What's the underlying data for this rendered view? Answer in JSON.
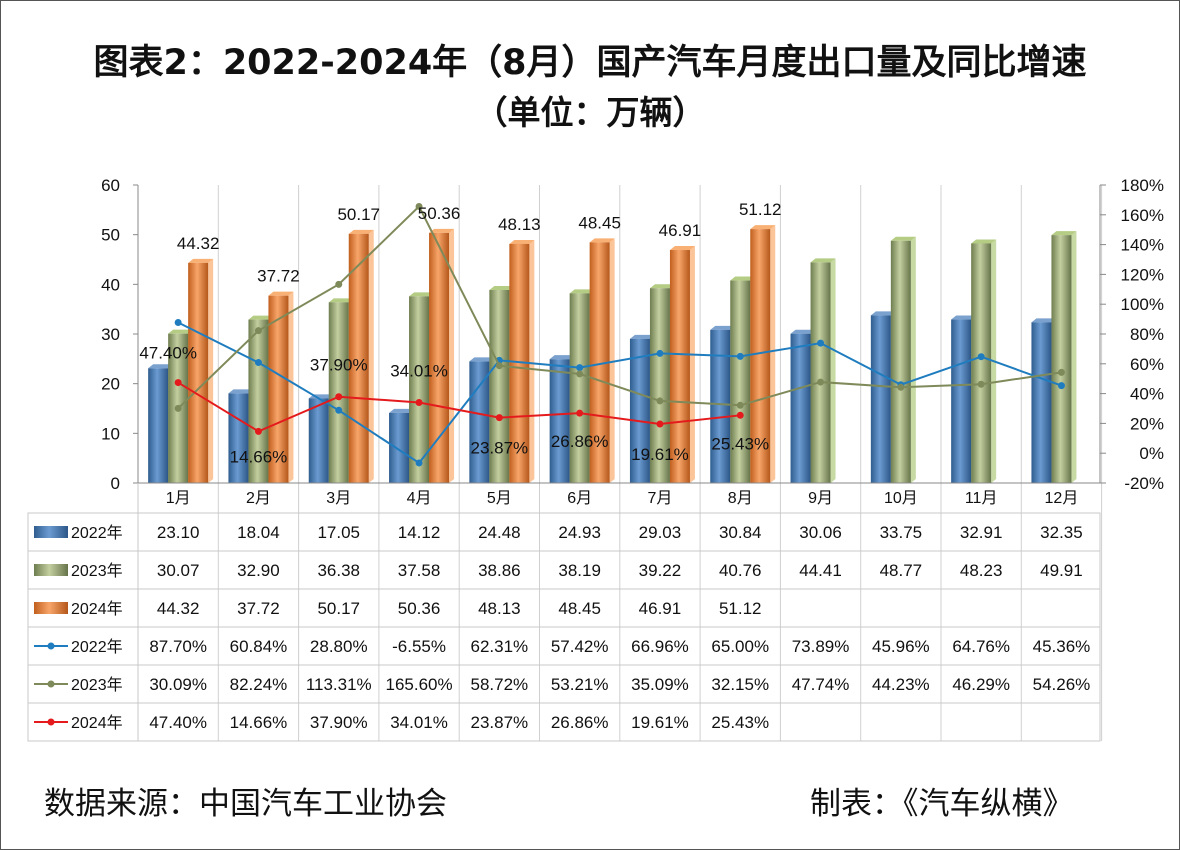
{
  "title": "图表2：2022-2024年（8月）国产汽车月度出口量及同比增速",
  "subtitle": "（单位：万辆）",
  "source_text": "数据来源：中国汽车工业协会",
  "maker_text": "制表：《汽车纵横》",
  "colors": {
    "bar_2022": "#4f81bd",
    "bar_2023": "#9bbb59",
    "bar_2024": "#f79646",
    "line_2022": "#1f7dbf",
    "line_2023": "#7f8a5a",
    "line_2024": "#e41a1c"
  },
  "chart_data": {
    "type": "bar",
    "categories": [
      "1月",
      "2月",
      "3月",
      "4月",
      "5月",
      "6月",
      "7月",
      "8月",
      "9月",
      "10月",
      "11月",
      "12月"
    ],
    "y_left": {
      "min": 0,
      "max": 60,
      "ticks": [
        "0",
        "10",
        "20",
        "30",
        "40",
        "50",
        "60"
      ]
    },
    "y_right": {
      "min": -20,
      "max": 180,
      "ticks": [
        "-20%",
        "0%",
        "20%",
        "40%",
        "60%",
        "80%",
        "100%",
        "120%",
        "140%",
        "160%",
        "180%"
      ]
    },
    "bar_series": [
      {
        "name": "2022年",
        "values": [
          23.1,
          18.04,
          17.05,
          14.12,
          24.48,
          24.93,
          29.03,
          30.84,
          30.06,
          33.75,
          32.91,
          32.35
        ],
        "labels": [
          "23.10",
          "18.04",
          "17.05",
          "14.12",
          "24.48",
          "24.93",
          "29.03",
          "30.84",
          "30.06",
          "33.75",
          "32.91",
          "32.35"
        ]
      },
      {
        "name": "2023年",
        "values": [
          30.07,
          32.9,
          36.38,
          37.58,
          38.86,
          38.19,
          39.22,
          40.76,
          44.41,
          48.77,
          48.23,
          49.91
        ],
        "labels": [
          "30.07",
          "32.90",
          "36.38",
          "37.58",
          "38.86",
          "38.19",
          "39.22",
          "40.76",
          "44.41",
          "48.77",
          "48.23",
          "49.91"
        ]
      },
      {
        "name": "2024年",
        "values": [
          44.32,
          37.72,
          50.17,
          50.36,
          48.13,
          48.45,
          46.91,
          51.12,
          null,
          null,
          null,
          null
        ],
        "labels": [
          "44.32",
          "37.72",
          "50.17",
          "50.36",
          "48.13",
          "48.45",
          "46.91",
          "51.12",
          "",
          "",
          "",
          ""
        ]
      }
    ],
    "line_series": [
      {
        "name": "2022年",
        "values": [
          87.7,
          60.84,
          28.8,
          -6.55,
          62.31,
          57.42,
          66.96,
          65.0,
          73.89,
          45.96,
          64.76,
          45.36
        ],
        "labels": [
          "87.70%",
          "60.84%",
          "28.80%",
          "-6.55%",
          "62.31%",
          "57.42%",
          "66.96%",
          "65.00%",
          "73.89%",
          "45.96%",
          "64.76%",
          "45.36%"
        ]
      },
      {
        "name": "2023年",
        "values": [
          30.09,
          82.24,
          113.31,
          165.6,
          58.72,
          53.21,
          35.09,
          32.15,
          47.74,
          44.23,
          46.29,
          54.26
        ],
        "labels": [
          "30.09%",
          "82.24%",
          "113.31%",
          "165.60%",
          "58.72%",
          "53.21%",
          "35.09%",
          "32.15%",
          "47.74%",
          "44.23%",
          "46.29%",
          "54.26%"
        ]
      },
      {
        "name": "2024年",
        "values": [
          47.4,
          14.66,
          37.9,
          34.01,
          23.87,
          26.86,
          19.61,
          25.43,
          null,
          null,
          null,
          null
        ],
        "labels": [
          "47.40%",
          "14.66%",
          "37.90%",
          "34.01%",
          "23.87%",
          "26.86%",
          "19.61%",
          "25.43%",
          "",
          "",
          "",
          ""
        ]
      }
    ],
    "data_labels_2024_bars": [
      "44.32",
      "37.72",
      "50.17",
      "50.36",
      "48.13",
      "48.45",
      "46.91",
      "51.12"
    ],
    "data_labels_2024_line": [
      "47.40%",
      "14.66%",
      "37.90%",
      "34.01%",
      "23.87%",
      "26.86%",
      "19.61%",
      "25.43%"
    ],
    "grid": true,
    "legend": "table-left"
  }
}
